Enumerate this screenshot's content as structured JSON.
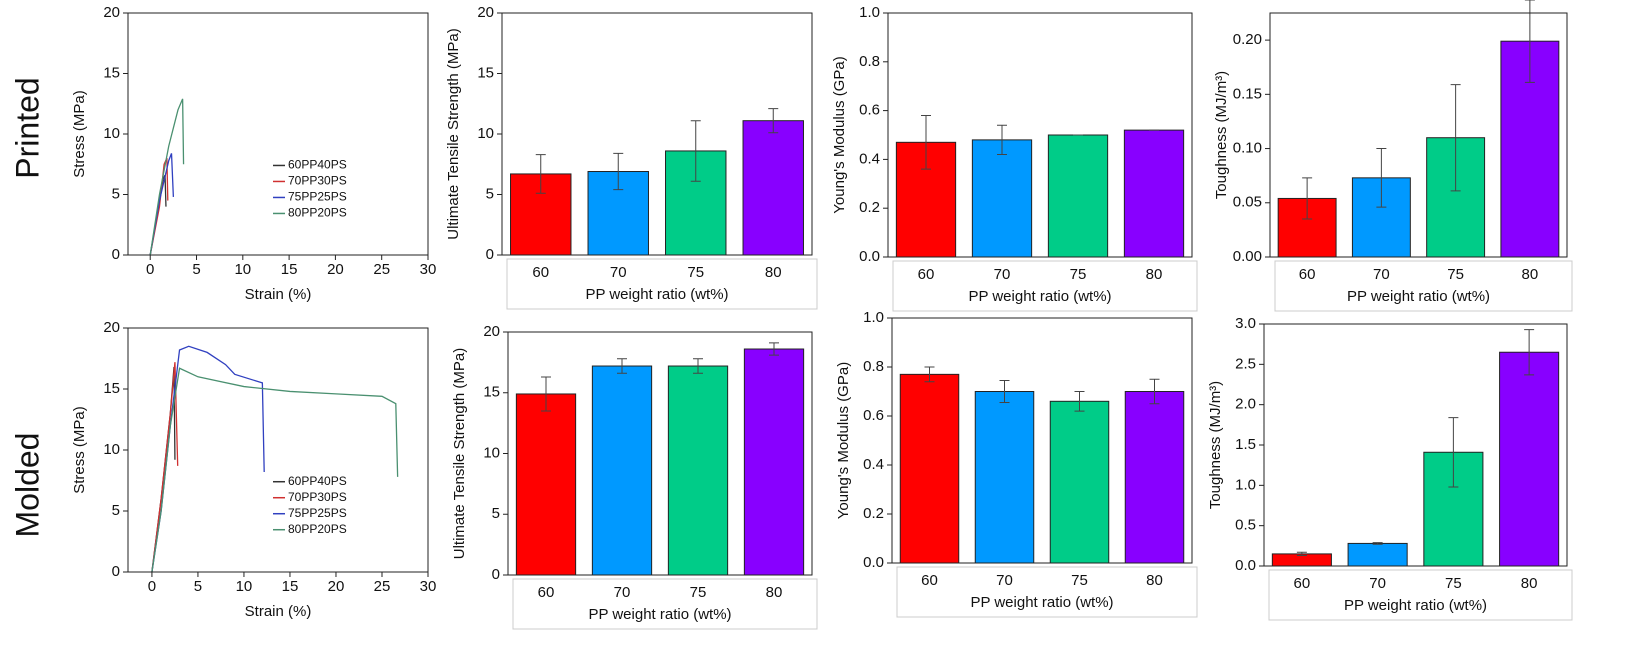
{
  "row_labels": [
    "Printed",
    "Molded"
  ],
  "chart_data": [
    {
      "type": "line",
      "xlabel": "Strain (%)",
      "ylabel": "Stress (MPa)",
      "xlim": [
        -2.4,
        30
      ],
      "xticks": [
        0,
        5,
        10,
        15,
        20,
        25,
        30
      ],
      "ylim": [
        0,
        20
      ],
      "yticks": [
        0,
        5,
        10,
        15,
        20
      ],
      "legend": "right",
      "series": [
        {
          "name": "60PP40PS",
          "color": "#333333",
          "x": [
            0,
            0.8,
            1.4,
            1.6,
            1.7
          ],
          "values": [
            0,
            3.5,
            6.3,
            6.6,
            4.0
          ]
        },
        {
          "name": "70PP30PS",
          "color": "#d03030",
          "x": [
            0,
            1,
            1.5,
            1.8,
            1.9
          ],
          "values": [
            0,
            4,
            7.5,
            8,
            4.5
          ]
        },
        {
          "name": "75PP25PS",
          "color": "#3040c0",
          "x": [
            0,
            1,
            2,
            2.3,
            2.5
          ],
          "values": [
            0,
            4.5,
            7.8,
            8.4,
            4.8
          ]
        },
        {
          "name": "80PP20PS",
          "color": "#4a9070",
          "x": [
            0,
            1,
            2,
            3,
            3.5,
            3.6
          ],
          "values": [
            0,
            5,
            9,
            12,
            12.9,
            7.5
          ]
        }
      ]
    },
    {
      "type": "bar",
      "ylabel": "Ultimate Tensile Strength (MPa)",
      "xlabel": "PP weight ratio (wt%)",
      "categories": [
        "60",
        "70",
        "75",
        "80"
      ],
      "values": [
        6.7,
        6.9,
        8.6,
        11.1
      ],
      "errors": [
        1.6,
        1.5,
        2.5,
        1.0
      ],
      "colors": [
        "#ff0000",
        "#0099ff",
        "#00cc88",
        "#8800ff"
      ],
      "ylim": [
        0,
        20
      ],
      "yticks": [
        0,
        5,
        10,
        15,
        20
      ]
    },
    {
      "type": "bar",
      "ylabel": "Young's Modulus (GPa)",
      "xlabel": "PP weight ratio (wt%)",
      "categories": [
        "60",
        "70",
        "75",
        "80"
      ],
      "values": [
        0.47,
        0.48,
        0.5,
        0.52
      ],
      "errors": [
        0.11,
        0.06,
        0.0,
        0.0
      ],
      "colors": [
        "#ff0000",
        "#0099ff",
        "#00cc88",
        "#8800ff"
      ],
      "ylim": [
        0,
        1
      ],
      "yticks": [
        {
          "value": 0,
          "label": "0.0"
        },
        0.2,
        0.4,
        0.6,
        0.8,
        {
          "value": 1,
          "label": "1.0"
        }
      ]
    },
    {
      "type": "bar",
      "ylabel": "Toughness (MJ/m³)",
      "xlabel": "PP weight ratio (wt%)",
      "categories": [
        "60",
        "70",
        "75",
        "80"
      ],
      "values": [
        0.054,
        0.073,
        0.11,
        0.199
      ],
      "errors": [
        0.019,
        0.027,
        0.049,
        0.038
      ],
      "colors": [
        "#ff0000",
        "#0099ff",
        "#00cc88",
        "#8800ff"
      ],
      "ylim": [
        0,
        0.225
      ],
      "yticks": [
        {
          "value": 0,
          "label": "0.00"
        },
        0.05,
        {
          "value": 0.1,
          "label": "0.10"
        },
        0.15,
        {
          "value": 0.2,
          "label": "0.20"
        }
      ]
    },
    {
      "type": "line",
      "xlabel": "Strain (%)",
      "ylabel": "Stress (MPa)",
      "xlim": [
        -2.6,
        30
      ],
      "xticks": [
        0,
        5,
        10,
        15,
        20,
        25,
        30
      ],
      "ylim": [
        0,
        20
      ],
      "yticks": [
        0,
        5,
        10,
        15,
        20
      ],
      "legend": "right",
      "series": [
        {
          "name": "60PP40PS",
          "color": "#333333",
          "x": [
            0,
            1,
            2,
            2.4,
            2.5
          ],
          "values": [
            0,
            6,
            13,
            16.8,
            9.2
          ]
        },
        {
          "name": "70PP30PS",
          "color": "#d03030",
          "x": [
            0,
            1,
            2,
            2.5,
            2.8
          ],
          "values": [
            0,
            6,
            13,
            17.2,
            8.7
          ]
        },
        {
          "name": "75PP25PS",
          "color": "#3040c0",
          "x": [
            0,
            1,
            2,
            3,
            4,
            6,
            8,
            9,
            12,
            12.2
          ],
          "values": [
            0,
            5,
            12,
            18.2,
            18.5,
            18,
            17,
            16.2,
            15.5,
            8.2
          ]
        },
        {
          "name": "80PP20PS",
          "color": "#4a9070",
          "x": [
            0,
            1,
            2,
            3,
            5,
            10,
            15,
            20,
            25,
            26.5,
            26.7
          ],
          "values": [
            0,
            5,
            12,
            16.7,
            16,
            15.2,
            14.8,
            14.6,
            14.4,
            13.8,
            7.8
          ]
        }
      ]
    },
    {
      "type": "bar",
      "ylabel": "Ultimate Tensile Strength (MPa)",
      "xlabel": "PP weight ratio (wt%)",
      "categories": [
        "60",
        "70",
        "75",
        "80"
      ],
      "values": [
        14.9,
        17.2,
        17.2,
        18.6
      ],
      "errors": [
        1.4,
        0.6,
        0.6,
        0.5
      ],
      "colors": [
        "#ff0000",
        "#0099ff",
        "#00cc88",
        "#8800ff"
      ],
      "ylim": [
        0,
        20
      ],
      "yticks": [
        0,
        5,
        10,
        15,
        20
      ]
    },
    {
      "type": "bar",
      "ylabel": "Young's Modulus (GPa)",
      "xlabel": "PP weight ratio (wt%)",
      "categories": [
        "60",
        "70",
        "75",
        "80"
      ],
      "values": [
        0.77,
        0.7,
        0.66,
        0.7
      ],
      "errors": [
        0.03,
        0.045,
        0.04,
        0.05
      ],
      "colors": [
        "#ff0000",
        "#0099ff",
        "#00cc88",
        "#8800ff"
      ],
      "ylim": [
        0,
        1
      ],
      "yticks": [
        {
          "value": 0,
          "label": "0.0"
        },
        0.2,
        0.4,
        0.6,
        0.8,
        {
          "value": 1,
          "label": "1.0"
        }
      ]
    },
    {
      "type": "bar",
      "ylabel": "Toughness (MJ/m³)",
      "xlabel": "PP weight ratio (wt%)",
      "categories": [
        "60",
        "70",
        "75",
        "80"
      ],
      "values": [
        0.15,
        0.28,
        1.41,
        2.65
      ],
      "errors": [
        0.02,
        0.01,
        0.43,
        0.28
      ],
      "colors": [
        "#ff0000",
        "#0099ff",
        "#00cc88",
        "#8800ff"
      ],
      "ylim": [
        0,
        3
      ],
      "yticks": [
        {
          "value": 0,
          "label": "0.0"
        },
        0.5,
        {
          "value": 1,
          "label": "1.0"
        },
        1.5,
        {
          "value": 2,
          "label": "2.0"
        },
        2.5,
        {
          "value": 3,
          "label": "3.0"
        }
      ]
    }
  ]
}
